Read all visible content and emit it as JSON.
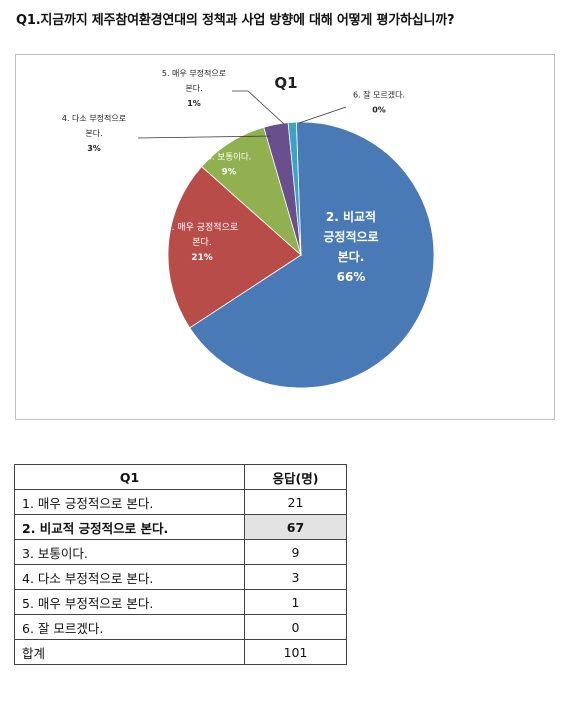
{
  "question": "Q1.지금까지 제주참여환경연대의 정책과 사업 방향에 대해 어떻게 평가하십니까?",
  "chart_data": {
    "type": "pie",
    "title": "Q1",
    "slices": [
      {
        "label_lines": [
          "2. 비교적",
          "긍정적으로",
          "본다."
        ],
        "percent_text": "66%",
        "value": 67,
        "color": "#4a7ab5"
      },
      {
        "label_lines": [
          "1. 매우 긍정적으로",
          "본다."
        ],
        "percent_text": "21%",
        "value": 21,
        "color": "#b84c49"
      },
      {
        "label_lines": [
          "3. 보통이다."
        ],
        "percent_text": "9%",
        "value": 9,
        "color": "#91b04f"
      },
      {
        "label_lines": [
          "4. 다소 부정적으로",
          "본다."
        ],
        "percent_text": "3%",
        "value": 3,
        "color": "#6a4f8e"
      },
      {
        "label_lines": [
          "5. 매우 부정적으로",
          "본다."
        ],
        "percent_text": "1%",
        "value": 1,
        "color": "#3ba3c4"
      },
      {
        "label_lines": [
          "6. 잘 모르겠다."
        ],
        "percent_text": "0%",
        "value": 0,
        "color": "#e08a36"
      }
    ]
  },
  "table": {
    "headers": [
      "Q1",
      "응답(명)"
    ],
    "rows": [
      {
        "label": "1. 매우 긍정적으로 본다.",
        "count": "21"
      },
      {
        "label": "2. 비교적 긍정적으로 본다.",
        "count": "67",
        "highlight": true
      },
      {
        "label": "3. 보통이다.",
        "count": "9"
      },
      {
        "label": "4. 다소 부정적으로 본다.",
        "count": "3"
      },
      {
        "label": "5. 매우 부정적으로 본다.",
        "count": "1"
      },
      {
        "label": "6. 잘 모르겠다.",
        "count": "0"
      },
      {
        "label": "합계",
        "count": "101"
      }
    ]
  }
}
